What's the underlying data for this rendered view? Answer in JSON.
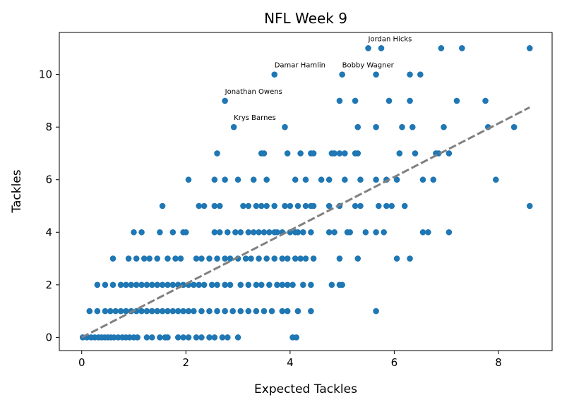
{
  "chart_data": {
    "type": "scatter",
    "title": "NFL Week 9",
    "xlabel": "Expected Tackles",
    "ylabel": "Tackles",
    "xlim": [
      -0.43,
      9.03
    ],
    "ylim": [
      -0.5,
      11.6
    ],
    "xticks": [
      0,
      2,
      4,
      6,
      8
    ],
    "yticks": [
      0,
      2,
      4,
      6,
      8,
      10
    ],
    "grid": false,
    "point_color": "#1f77b4",
    "trend_color": "#808080",
    "trendline": {
      "style": "dashed",
      "x": [
        0,
        8.6
      ],
      "y": [
        0,
        8.75
      ]
    },
    "annotations": [
      {
        "text": "Jordan Hicks",
        "x": 5.5,
        "y": 11
      },
      {
        "text": "Damar Hamlin",
        "x": 3.7,
        "y": 10
      },
      {
        "text": "Bobby Wagner",
        "x": 5.0,
        "y": 10
      },
      {
        "text": "Jonathan Owens",
        "x": 2.75,
        "y": 9
      },
      {
        "text": "Krys Barnes",
        "x": 2.92,
        "y": 8
      }
    ],
    "points": [
      {
        "x": 5.5,
        "y": 11
      },
      {
        "x": 5.75,
        "y": 11
      },
      {
        "x": 6.9,
        "y": 11
      },
      {
        "x": 7.3,
        "y": 11
      },
      {
        "x": 8.6,
        "y": 11
      },
      {
        "x": 3.7,
        "y": 10
      },
      {
        "x": 5.0,
        "y": 10
      },
      {
        "x": 5.65,
        "y": 10
      },
      {
        "x": 6.3,
        "y": 10
      },
      {
        "x": 6.5,
        "y": 10
      },
      {
        "x": 2.75,
        "y": 9
      },
      {
        "x": 4.95,
        "y": 9
      },
      {
        "x": 5.25,
        "y": 9
      },
      {
        "x": 5.9,
        "y": 9
      },
      {
        "x": 6.3,
        "y": 9
      },
      {
        "x": 7.2,
        "y": 9
      },
      {
        "x": 7.75,
        "y": 9
      },
      {
        "x": 2.92,
        "y": 8
      },
      {
        "x": 3.9,
        "y": 8
      },
      {
        "x": 5.3,
        "y": 8
      },
      {
        "x": 5.65,
        "y": 8
      },
      {
        "x": 6.15,
        "y": 8
      },
      {
        "x": 6.35,
        "y": 8
      },
      {
        "x": 6.95,
        "y": 8
      },
      {
        "x": 7.8,
        "y": 8
      },
      {
        "x": 8.3,
        "y": 8
      },
      {
        "x": 2.6,
        "y": 7
      },
      {
        "x": 3.45,
        "y": 7
      },
      {
        "x": 3.5,
        "y": 7
      },
      {
        "x": 3.95,
        "y": 7
      },
      {
        "x": 4.2,
        "y": 7
      },
      {
        "x": 4.4,
        "y": 7
      },
      {
        "x": 4.45,
        "y": 7
      },
      {
        "x": 4.8,
        "y": 7
      },
      {
        "x": 4.85,
        "y": 7
      },
      {
        "x": 4.95,
        "y": 7
      },
      {
        "x": 5.05,
        "y": 7
      },
      {
        "x": 5.25,
        "y": 7
      },
      {
        "x": 5.3,
        "y": 7
      },
      {
        "x": 6.1,
        "y": 7
      },
      {
        "x": 6.4,
        "y": 7
      },
      {
        "x": 6.8,
        "y": 7
      },
      {
        "x": 6.85,
        "y": 7
      },
      {
        "x": 7.05,
        "y": 7
      },
      {
        "x": 2.05,
        "y": 6
      },
      {
        "x": 2.55,
        "y": 6
      },
      {
        "x": 2.75,
        "y": 6
      },
      {
        "x": 3.0,
        "y": 6
      },
      {
        "x": 3.3,
        "y": 6
      },
      {
        "x": 3.55,
        "y": 6
      },
      {
        "x": 4.1,
        "y": 6
      },
      {
        "x": 4.3,
        "y": 6
      },
      {
        "x": 4.6,
        "y": 6
      },
      {
        "x": 4.75,
        "y": 6
      },
      {
        "x": 5.05,
        "y": 6
      },
      {
        "x": 5.35,
        "y": 6
      },
      {
        "x": 5.65,
        "y": 6
      },
      {
        "x": 5.85,
        "y": 6
      },
      {
        "x": 6.05,
        "y": 6
      },
      {
        "x": 6.55,
        "y": 6
      },
      {
        "x": 6.75,
        "y": 6
      },
      {
        "x": 7.95,
        "y": 6
      },
      {
        "x": 1.55,
        "y": 5
      },
      {
        "x": 2.25,
        "y": 5
      },
      {
        "x": 2.35,
        "y": 5
      },
      {
        "x": 2.55,
        "y": 5
      },
      {
        "x": 2.65,
        "y": 5
      },
      {
        "x": 3.1,
        "y": 5
      },
      {
        "x": 3.2,
        "y": 5
      },
      {
        "x": 3.35,
        "y": 5
      },
      {
        "x": 3.45,
        "y": 5
      },
      {
        "x": 3.55,
        "y": 5
      },
      {
        "x": 3.7,
        "y": 5
      },
      {
        "x": 3.9,
        "y": 5
      },
      {
        "x": 4.0,
        "y": 5
      },
      {
        "x": 4.15,
        "y": 5
      },
      {
        "x": 4.3,
        "y": 5
      },
      {
        "x": 4.4,
        "y": 5
      },
      {
        "x": 4.45,
        "y": 5
      },
      {
        "x": 4.75,
        "y": 5
      },
      {
        "x": 4.95,
        "y": 5
      },
      {
        "x": 5.25,
        "y": 5
      },
      {
        "x": 5.35,
        "y": 5
      },
      {
        "x": 5.7,
        "y": 5
      },
      {
        "x": 5.85,
        "y": 5
      },
      {
        "x": 5.95,
        "y": 5
      },
      {
        "x": 6.2,
        "y": 5
      },
      {
        "x": 8.6,
        "y": 5
      },
      {
        "x": 1.0,
        "y": 4
      },
      {
        "x": 1.15,
        "y": 4
      },
      {
        "x": 1.5,
        "y": 4
      },
      {
        "x": 1.75,
        "y": 4
      },
      {
        "x": 1.95,
        "y": 4
      },
      {
        "x": 2.0,
        "y": 4
      },
      {
        "x": 2.55,
        "y": 4
      },
      {
        "x": 2.65,
        "y": 4
      },
      {
        "x": 2.8,
        "y": 4
      },
      {
        "x": 2.95,
        "y": 4
      },
      {
        "x": 3.05,
        "y": 4
      },
      {
        "x": 3.2,
        "y": 4
      },
      {
        "x": 3.3,
        "y": 4
      },
      {
        "x": 3.4,
        "y": 4
      },
      {
        "x": 3.5,
        "y": 4
      },
      {
        "x": 3.6,
        "y": 4
      },
      {
        "x": 3.7,
        "y": 4
      },
      {
        "x": 3.75,
        "y": 4
      },
      {
        "x": 3.85,
        "y": 4
      },
      {
        "x": 4.0,
        "y": 4
      },
      {
        "x": 4.1,
        "y": 4
      },
      {
        "x": 4.15,
        "y": 4
      },
      {
        "x": 4.25,
        "y": 4
      },
      {
        "x": 4.4,
        "y": 4
      },
      {
        "x": 4.75,
        "y": 4
      },
      {
        "x": 4.85,
        "y": 4
      },
      {
        "x": 5.1,
        "y": 4
      },
      {
        "x": 5.15,
        "y": 4
      },
      {
        "x": 5.45,
        "y": 4
      },
      {
        "x": 5.65,
        "y": 4
      },
      {
        "x": 5.8,
        "y": 4
      },
      {
        "x": 6.55,
        "y": 4
      },
      {
        "x": 6.65,
        "y": 4
      },
      {
        "x": 7.05,
        "y": 4
      },
      {
        "x": 0.6,
        "y": 3
      },
      {
        "x": 0.9,
        "y": 3
      },
      {
        "x": 1.05,
        "y": 3
      },
      {
        "x": 1.2,
        "y": 3
      },
      {
        "x": 1.3,
        "y": 3
      },
      {
        "x": 1.45,
        "y": 3
      },
      {
        "x": 1.65,
        "y": 3
      },
      {
        "x": 1.8,
        "y": 3
      },
      {
        "x": 1.9,
        "y": 3
      },
      {
        "x": 2.2,
        "y": 3
      },
      {
        "x": 2.3,
        "y": 3
      },
      {
        "x": 2.45,
        "y": 3
      },
      {
        "x": 2.6,
        "y": 3
      },
      {
        "x": 2.75,
        "y": 3
      },
      {
        "x": 2.85,
        "y": 3
      },
      {
        "x": 3.0,
        "y": 3
      },
      {
        "x": 3.15,
        "y": 3
      },
      {
        "x": 3.25,
        "y": 3
      },
      {
        "x": 3.4,
        "y": 3
      },
      {
        "x": 3.55,
        "y": 3
      },
      {
        "x": 3.7,
        "y": 3
      },
      {
        "x": 3.85,
        "y": 3
      },
      {
        "x": 3.95,
        "y": 3
      },
      {
        "x": 4.1,
        "y": 3
      },
      {
        "x": 4.2,
        "y": 3
      },
      {
        "x": 4.3,
        "y": 3
      },
      {
        "x": 4.45,
        "y": 3
      },
      {
        "x": 4.95,
        "y": 3
      },
      {
        "x": 5.3,
        "y": 3
      },
      {
        "x": 6.05,
        "y": 3
      },
      {
        "x": 6.3,
        "y": 3
      },
      {
        "x": 0.3,
        "y": 2
      },
      {
        "x": 0.45,
        "y": 2
      },
      {
        "x": 0.6,
        "y": 2
      },
      {
        "x": 0.75,
        "y": 2
      },
      {
        "x": 0.85,
        "y": 2
      },
      {
        "x": 0.95,
        "y": 2
      },
      {
        "x": 1.05,
        "y": 2
      },
      {
        "x": 1.15,
        "y": 2
      },
      {
        "x": 1.25,
        "y": 2
      },
      {
        "x": 1.35,
        "y": 2
      },
      {
        "x": 1.45,
        "y": 2
      },
      {
        "x": 1.55,
        "y": 2
      },
      {
        "x": 1.65,
        "y": 2
      },
      {
        "x": 1.75,
        "y": 2
      },
      {
        "x": 1.85,
        "y": 2
      },
      {
        "x": 1.95,
        "y": 2
      },
      {
        "x": 2.05,
        "y": 2
      },
      {
        "x": 2.15,
        "y": 2
      },
      {
        "x": 2.25,
        "y": 2
      },
      {
        "x": 2.35,
        "y": 2
      },
      {
        "x": 2.5,
        "y": 2
      },
      {
        "x": 2.6,
        "y": 2
      },
      {
        "x": 2.75,
        "y": 2
      },
      {
        "x": 2.85,
        "y": 2
      },
      {
        "x": 3.05,
        "y": 2
      },
      {
        "x": 3.2,
        "y": 2
      },
      {
        "x": 3.35,
        "y": 2
      },
      {
        "x": 3.45,
        "y": 2
      },
      {
        "x": 3.6,
        "y": 2
      },
      {
        "x": 3.75,
        "y": 2
      },
      {
        "x": 3.85,
        "y": 2
      },
      {
        "x": 3.95,
        "y": 2
      },
      {
        "x": 4.05,
        "y": 2
      },
      {
        "x": 4.25,
        "y": 2
      },
      {
        "x": 4.4,
        "y": 2
      },
      {
        "x": 4.8,
        "y": 2
      },
      {
        "x": 4.95,
        "y": 2
      },
      {
        "x": 5.0,
        "y": 2
      },
      {
        "x": 0.15,
        "y": 1
      },
      {
        "x": 0.3,
        "y": 1
      },
      {
        "x": 0.45,
        "y": 1
      },
      {
        "x": 0.55,
        "y": 1
      },
      {
        "x": 0.65,
        "y": 1
      },
      {
        "x": 0.75,
        "y": 1
      },
      {
        "x": 0.85,
        "y": 1
      },
      {
        "x": 0.95,
        "y": 1
      },
      {
        "x": 1.05,
        "y": 1
      },
      {
        "x": 1.15,
        "y": 1
      },
      {
        "x": 1.25,
        "y": 1
      },
      {
        "x": 1.35,
        "y": 1
      },
      {
        "x": 1.45,
        "y": 1
      },
      {
        "x": 1.55,
        "y": 1
      },
      {
        "x": 1.65,
        "y": 1
      },
      {
        "x": 1.75,
        "y": 1
      },
      {
        "x": 1.85,
        "y": 1
      },
      {
        "x": 1.95,
        "y": 1
      },
      {
        "x": 2.05,
        "y": 1
      },
      {
        "x": 2.15,
        "y": 1
      },
      {
        "x": 2.3,
        "y": 1
      },
      {
        "x": 2.45,
        "y": 1
      },
      {
        "x": 2.6,
        "y": 1
      },
      {
        "x": 2.75,
        "y": 1
      },
      {
        "x": 2.9,
        "y": 1
      },
      {
        "x": 3.05,
        "y": 1
      },
      {
        "x": 3.2,
        "y": 1
      },
      {
        "x": 3.35,
        "y": 1
      },
      {
        "x": 3.5,
        "y": 1
      },
      {
        "x": 3.65,
        "y": 1
      },
      {
        "x": 3.85,
        "y": 1
      },
      {
        "x": 3.95,
        "y": 1
      },
      {
        "x": 4.15,
        "y": 1
      },
      {
        "x": 4.4,
        "y": 1
      },
      {
        "x": 5.65,
        "y": 1
      },
      {
        "x": 0.02,
        "y": 0
      },
      {
        "x": 0.1,
        "y": 0
      },
      {
        "x": 0.18,
        "y": 0
      },
      {
        "x": 0.25,
        "y": 0
      },
      {
        "x": 0.32,
        "y": 0
      },
      {
        "x": 0.38,
        "y": 0
      },
      {
        "x": 0.44,
        "y": 0
      },
      {
        "x": 0.5,
        "y": 0
      },
      {
        "x": 0.56,
        "y": 0
      },
      {
        "x": 0.62,
        "y": 0
      },
      {
        "x": 0.7,
        "y": 0
      },
      {
        "x": 0.78,
        "y": 0
      },
      {
        "x": 0.85,
        "y": 0
      },
      {
        "x": 0.92,
        "y": 0
      },
      {
        "x": 1.0,
        "y": 0
      },
      {
        "x": 1.07,
        "y": 0
      },
      {
        "x": 1.25,
        "y": 0
      },
      {
        "x": 1.35,
        "y": 0
      },
      {
        "x": 1.5,
        "y": 0
      },
      {
        "x": 1.6,
        "y": 0
      },
      {
        "x": 1.65,
        "y": 0
      },
      {
        "x": 1.85,
        "y": 0
      },
      {
        "x": 1.95,
        "y": 0
      },
      {
        "x": 2.05,
        "y": 0
      },
      {
        "x": 2.2,
        "y": 0
      },
      {
        "x": 2.3,
        "y": 0
      },
      {
        "x": 2.45,
        "y": 0
      },
      {
        "x": 2.55,
        "y": 0
      },
      {
        "x": 2.7,
        "y": 0
      },
      {
        "x": 2.8,
        "y": 0
      },
      {
        "x": 3.0,
        "y": 0
      },
      {
        "x": 4.05,
        "y": 0
      },
      {
        "x": 4.12,
        "y": 0
      }
    ]
  }
}
